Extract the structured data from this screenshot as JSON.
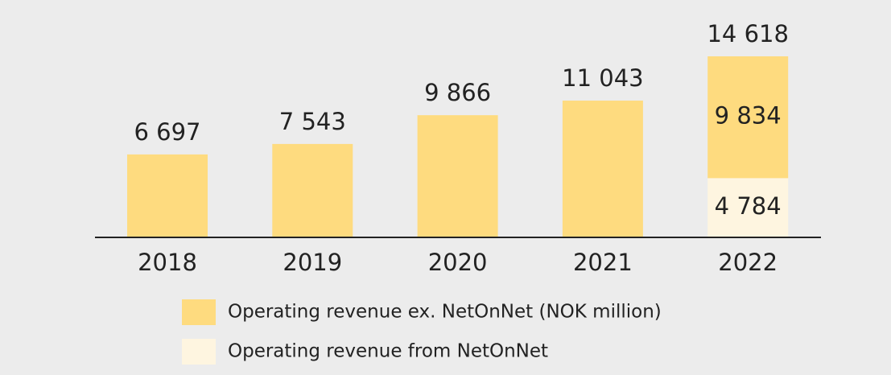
{
  "chart_data": {
    "type": "stacked_bar",
    "categories": [
      "2018",
      "2019",
      "2020",
      "2021",
      "2022"
    ],
    "series": [
      {
        "name": "Operating revenue from NetOnNet",
        "color": "#fef5e0",
        "values": [
          null,
          null,
          null,
          null,
          4784
        ],
        "value_labels": [
          null,
          null,
          null,
          null,
          "4 784"
        ]
      },
      {
        "name": "Operating revenue ex. NetOnNet (NOK million)",
        "color": "#fedb7f",
        "values": [
          6697,
          7543,
          9866,
          11043,
          9834
        ],
        "value_labels": [
          null,
          null,
          null,
          null,
          "9 834"
        ]
      }
    ],
    "totals": {
      "values": [
        6697,
        7543,
        9866,
        11043,
        14618
      ],
      "value_labels": [
        "6 697",
        "7 543",
        "9 866",
        "11 043",
        "14 618"
      ]
    }
  }
}
